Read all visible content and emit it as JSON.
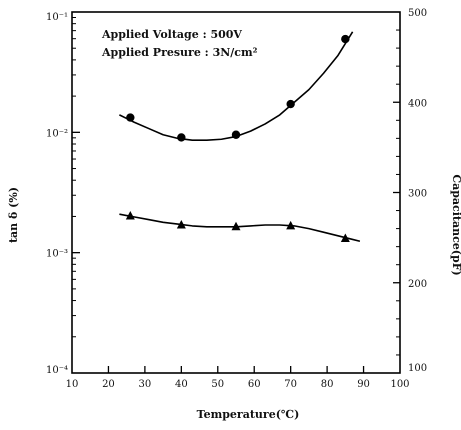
{
  "chart_data": {
    "type": "line",
    "annotations": [
      "Applied Voltage : 500V",
      "Applied Presure : 3N/cm²"
    ],
    "xlabel": "Temperature(℃)",
    "ylabel_left": "tan δ (%)",
    "ylabel_right": "Capacitance(pF)",
    "x_ticks": [
      "10",
      "20",
      "30",
      "40",
      "50",
      "60",
      "70",
      "80",
      "90",
      "100"
    ],
    "xlim": [
      10,
      100
    ],
    "y_left_ticks": [
      "10⁻¹",
      "10⁻²",
      "10⁻³",
      "10⁻⁴"
    ],
    "y_left_scale": "log",
    "y_left_lim_exponent": [
      -4,
      -1
    ],
    "y_right_ticks": [
      "100",
      "200",
      "300",
      "400",
      "500"
    ],
    "y_right_lim": [
      100,
      500
    ],
    "grid": false,
    "series": [
      {
        "axis": "right",
        "marker": "circle",
        "x": [
          26,
          40,
          55,
          70,
          85
        ],
        "y": [
          383,
          361,
          364,
          398,
          470
        ],
        "curve_x": [
          23,
          27,
          31,
          35,
          39,
          43,
          47,
          51,
          55,
          59,
          63,
          67,
          71,
          75,
          79,
          83,
          87
        ],
        "curve_y": [
          386,
          378,
          371,
          364,
          360,
          358,
          358,
          359,
          362,
          368,
          376,
          386,
          400,
          414,
          432,
          452,
          478
        ]
      },
      {
        "axis": "right",
        "marker": "triangle",
        "x": [
          26,
          40,
          55,
          70,
          85
        ],
        "y": [
          274,
          264,
          262,
          263,
          249
        ],
        "curve_x": [
          23,
          27,
          31,
          35,
          39,
          43,
          47,
          51,
          55,
          59,
          63,
          67,
          71,
          75,
          79,
          83,
          87,
          89
        ],
        "curve_y": [
          276,
          273,
          270,
          267,
          265,
          263,
          262,
          262,
          262,
          263,
          264,
          264,
          263,
          260,
          256,
          252,
          248,
          246
        ]
      }
    ]
  }
}
